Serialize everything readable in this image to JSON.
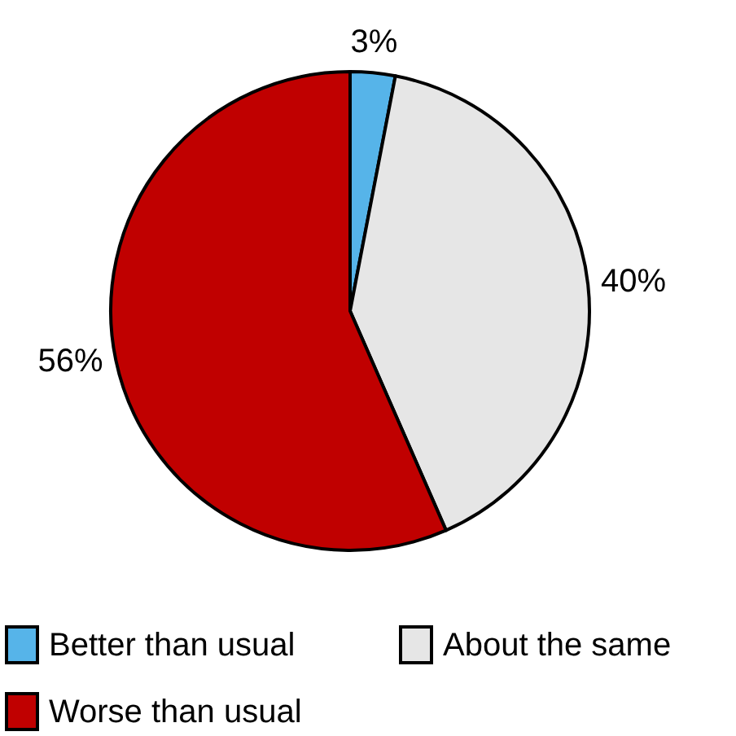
{
  "chart_data": {
    "type": "pie",
    "categories": [
      "Better than usual",
      "About the same",
      "Worse than usual"
    ],
    "values": [
      3,
      40,
      56
    ],
    "colors": [
      "#56b4e9",
      "#e6e6e6",
      "#c00000"
    ],
    "value_labels": [
      "3%",
      "40%",
      "56%"
    ],
    "legend": "bottom"
  }
}
